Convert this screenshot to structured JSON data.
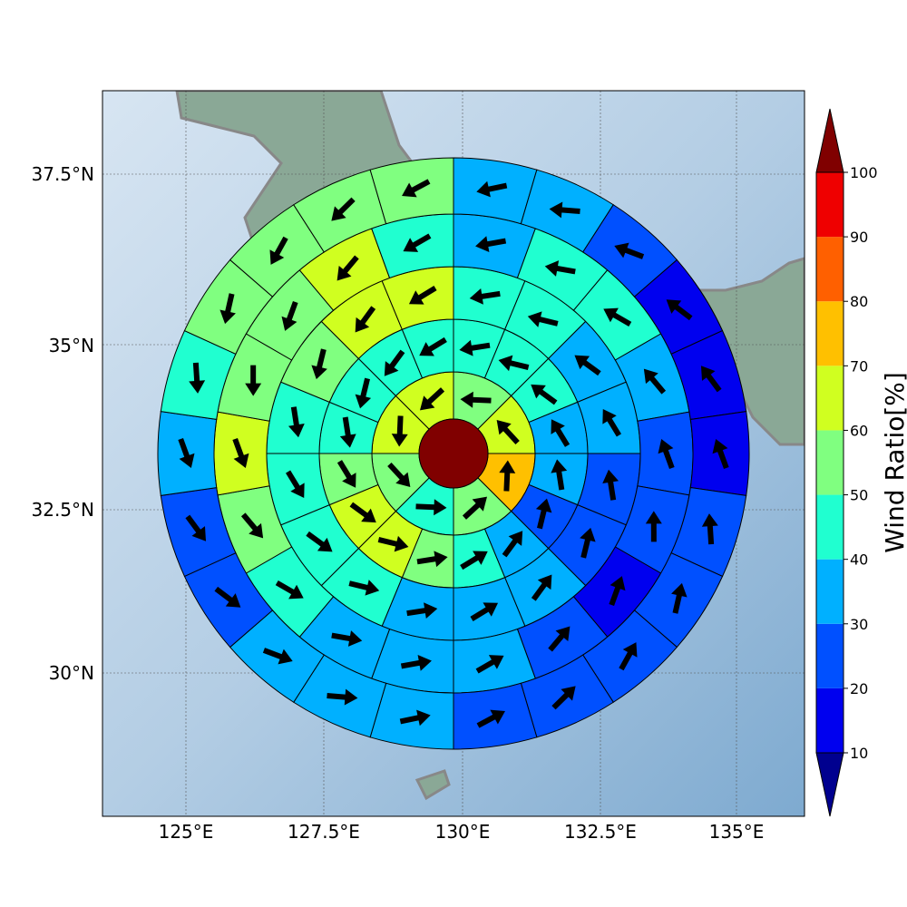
{
  "map": {
    "lon_labels": [
      "125°E",
      "127.5°E",
      "130°E",
      "132.5°E",
      "135°E"
    ],
    "lat_labels": [
      "37.5°N",
      "35°N",
      "32.5°N",
      "30°N"
    ],
    "land_color": "#7f9e8c",
    "sea_color": "#b4cce3",
    "coast_color": "#888888",
    "grid": true
  },
  "colorbar": {
    "label": "Wind Ratio[%]",
    "ticks": [
      "10",
      "20",
      "30",
      "40",
      "50",
      "60",
      "70",
      "80",
      "90",
      "100"
    ],
    "colors": [
      "#00008f",
      "#0000ef",
      "#0050ff",
      "#00b0ff",
      "#20ffd0",
      "#80ff80",
      "#d0ff20",
      "#ffc000",
      "#ff6000",
      "#ef0000",
      "#800000"
    ]
  },
  "chart_data": {
    "type": "heatmap",
    "description_units": "percent",
    "center_value": 100,
    "rings": [
      {
        "values": [
          50,
          60,
          70,
          50,
          40,
          50,
          60,
          60
        ]
      },
      {
        "values": [
          40,
          40,
          40,
          30,
          30,
          20,
          30,
          40,
          50,
          60,
          60,
          50,
          40,
          40,
          40,
          40
        ]
      },
      {
        "values": [
          40,
          40,
          30,
          30,
          20,
          20,
          30,
          30,
          30,
          40,
          40,
          40,
          40,
          50,
          60,
          60
        ]
      },
      {
        "values": [
          30,
          40,
          40,
          30,
          20,
          20,
          10,
          20,
          30,
          30,
          30,
          40,
          50,
          60,
          50,
          50,
          60,
          40
        ]
      },
      {
        "values": [
          30,
          30,
          20,
          10,
          10,
          10,
          20,
          20,
          20,
          20,
          20,
          30,
          30,
          30,
          20,
          20,
          30,
          40,
          50,
          50,
          50,
          50
        ]
      }
    ]
  }
}
